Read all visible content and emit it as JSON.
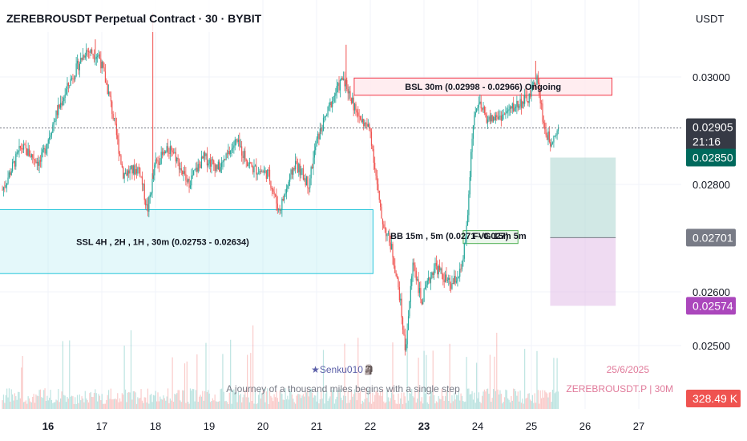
{
  "header": {
    "title": "ZEREBROUSDT Perpetual Contract · 30 · BYBIT",
    "currency": "USDT"
  },
  "chart_data": {
    "type": "candlestick",
    "ylim": [
      0.02455,
      0.03105
    ],
    "price_ticks": [
      {
        "value": 0.03,
        "label": "0.03000"
      },
      {
        "value": 0.028,
        "label": "0.02800"
      },
      {
        "value": 0.026,
        "label": "0.02600"
      },
      {
        "value": 0.025,
        "label": "0.02500"
      }
    ],
    "x_ticks": [
      {
        "label": "16",
        "day": 16,
        "bold": true
      },
      {
        "label": "17",
        "day": 17,
        "bold": false
      },
      {
        "label": "18",
        "day": 18,
        "bold": false
      },
      {
        "label": "19",
        "day": 19,
        "bold": false
      },
      {
        "label": "20",
        "day": 20,
        "bold": false
      },
      {
        "label": "21",
        "day": 21,
        "bold": false
      },
      {
        "label": "22",
        "day": 22,
        "bold": false
      },
      {
        "label": "23",
        "day": 23,
        "bold": true
      },
      {
        "label": "24",
        "day": 24,
        "bold": false
      },
      {
        "label": "25",
        "day": 25,
        "bold": false
      },
      {
        "label": "26",
        "day": 26,
        "bold": false
      },
      {
        "label": "27",
        "day": 27,
        "bold": false
      }
    ],
    "price_path": [
      [
        15.15,
        0.0279
      ],
      [
        15.5,
        0.0287
      ],
      [
        15.85,
        0.0284
      ],
      [
        16.15,
        0.0293
      ],
      [
        16.4,
        0.0299
      ],
      [
        16.7,
        0.0305
      ],
      [
        16.95,
        0.0304
      ],
      [
        17.15,
        0.0296
      ],
      [
        17.4,
        0.0282
      ],
      [
        17.7,
        0.0283
      ],
      [
        17.85,
        0.0275
      ],
      [
        18.0,
        0.0284
      ],
      [
        18.3,
        0.0287
      ],
      [
        18.6,
        0.028
      ],
      [
        18.9,
        0.0285
      ],
      [
        19.2,
        0.0283
      ],
      [
        19.5,
        0.0288
      ],
      [
        19.8,
        0.0283
      ],
      [
        20.1,
        0.0282
      ],
      [
        20.3,
        0.0275
      ],
      [
        20.6,
        0.0284
      ],
      [
        20.85,
        0.028
      ],
      [
        21.0,
        0.0288
      ],
      [
        21.3,
        0.0296
      ],
      [
        21.5,
        0.03
      ],
      [
        21.75,
        0.0293
      ],
      [
        22.0,
        0.029
      ],
      [
        22.1,
        0.0282
      ],
      [
        22.2,
        0.0274
      ],
      [
        22.4,
        0.0268
      ],
      [
        22.55,
        0.0259
      ],
      [
        22.65,
        0.0249
      ],
      [
        22.8,
        0.0266
      ],
      [
        22.95,
        0.0258
      ],
      [
        23.2,
        0.0265
      ],
      [
        23.5,
        0.0261
      ],
      [
        23.7,
        0.0264
      ],
      [
        23.8,
        0.0272
      ],
      [
        23.9,
        0.029
      ],
      [
        24.0,
        0.0295
      ],
      [
        24.2,
        0.0292
      ],
      [
        24.5,
        0.0293
      ],
      [
        24.75,
        0.0295
      ],
      [
        24.95,
        0.0296
      ],
      [
        25.1,
        0.03
      ],
      [
        25.25,
        0.029
      ],
      [
        25.35,
        0.0288
      ],
      [
        25.5,
        0.02905
      ]
    ],
    "spikes": [
      {
        "day": 16.88,
        "high": 0.0307
      },
      {
        "day": 17.95,
        "high": 0.0312
      },
      {
        "day": 21.55,
        "high": 0.0306
      },
      {
        "day": 25.08,
        "high": 0.0303
      }
    ],
    "zones": [
      {
        "label": "BSL 30m (0.02998 - 0.02966) Ongoing",
        "top": 0.02998,
        "bottom": 0.02966,
        "start_day": 21.7,
        "end_day": 26.5,
        "fill": "rgba(255,235,238,0.9)",
        "stroke": "#f23645"
      },
      {
        "label": "SSL 4H , 2H , 1H , 30m (0.02753 - 0.02634)",
        "top": 0.02753,
        "bottom": 0.02634,
        "start_day": 14.9,
        "end_day": 22.05,
        "fill": "rgba(178,235,242,0.35)",
        "stroke": "#26c6da"
      }
    ],
    "bb_label": "BB 15m , 5m (0.0271 - 0.027)",
    "fvg_label": "FVG 15m 5m",
    "fvg_zone": {
      "top": 0.02714,
      "bottom": 0.0269,
      "start_day": 23.73,
      "end_day": 24.75
    },
    "position": {
      "entry": 0.02701,
      "target": 0.0285,
      "stop": 0.02574,
      "start_day": 25.35,
      "end_day": 26.57,
      "profit_fill": "rgba(178,216,212,0.6)",
      "loss_fill": "rgba(225,190,231,0.55)"
    },
    "last_price": 0.02905,
    "badges": [
      {
        "value": "0.02905",
        "sub": "21:16",
        "price": 0.02905,
        "color": "#363a45"
      },
      {
        "value": "0.02850",
        "price": 0.0285,
        "color": "#00695c"
      },
      {
        "value": "0.02701",
        "price": 0.02701,
        "color": "#787b86"
      },
      {
        "value": "0.02574",
        "price": 0.02574,
        "color": "#ab47bc"
      }
    ],
    "volume_badge": {
      "value": "328.49 K",
      "color": "#ef5350"
    },
    "signature": "★Senku010🗿",
    "quote": "A journey of a thousand miles begins with a single step",
    "watermark_date": "25/6/2025",
    "watermark_symbol": "ZEREBROUSDT.P | 30M",
    "grid": true,
    "colors": {
      "up": "#26a69a",
      "down": "#ef5350"
    }
  }
}
